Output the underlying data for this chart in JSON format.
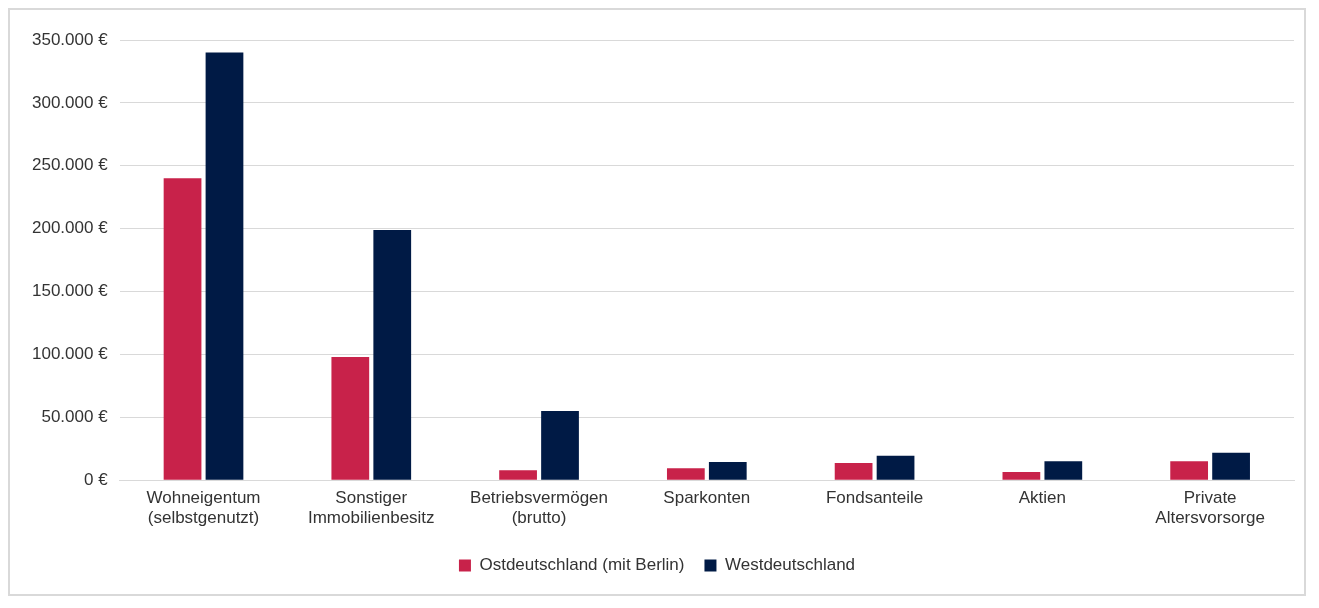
{
  "chart_data": {
    "type": "bar",
    "categories": [
      "Wohneigentum (selbstgenutzt)",
      "Sonstiger Immobilienbesitz",
      "Betriebsvermögen (brutto)",
      "Sparkonten",
      "Fondsanteile",
      "Aktien",
      "Private Altersvorsorge"
    ],
    "series": [
      {
        "name": "Ostdeutschland (mit Berlin)",
        "color": "#c8224a",
        "values": [
          240000,
          98000,
          8000,
          9500,
          13700,
          6500,
          15000
        ]
      },
      {
        "name": "Westdeutschland",
        "color": "#001a45",
        "values": [
          340000,
          199000,
          55000,
          14500,
          19400,
          15000,
          21800
        ]
      }
    ],
    "ylim": [
      0,
      350000
    ],
    "yticks": [
      {
        "value": 0,
        "label": "0 €"
      },
      {
        "value": 50000,
        "label": "50.000 €"
      },
      {
        "value": 100000,
        "label": "100.000 €"
      },
      {
        "value": 150000,
        "label": "150.000 €"
      },
      {
        "value": 200000,
        "label": "200.000 €"
      },
      {
        "value": 250000,
        "label": "250.000 €"
      },
      {
        "value": 300000,
        "label": "300.000 €"
      },
      {
        "value": 350000,
        "label": "350.000 €"
      }
    ],
    "grid": "y",
    "legend": "bottom"
  }
}
